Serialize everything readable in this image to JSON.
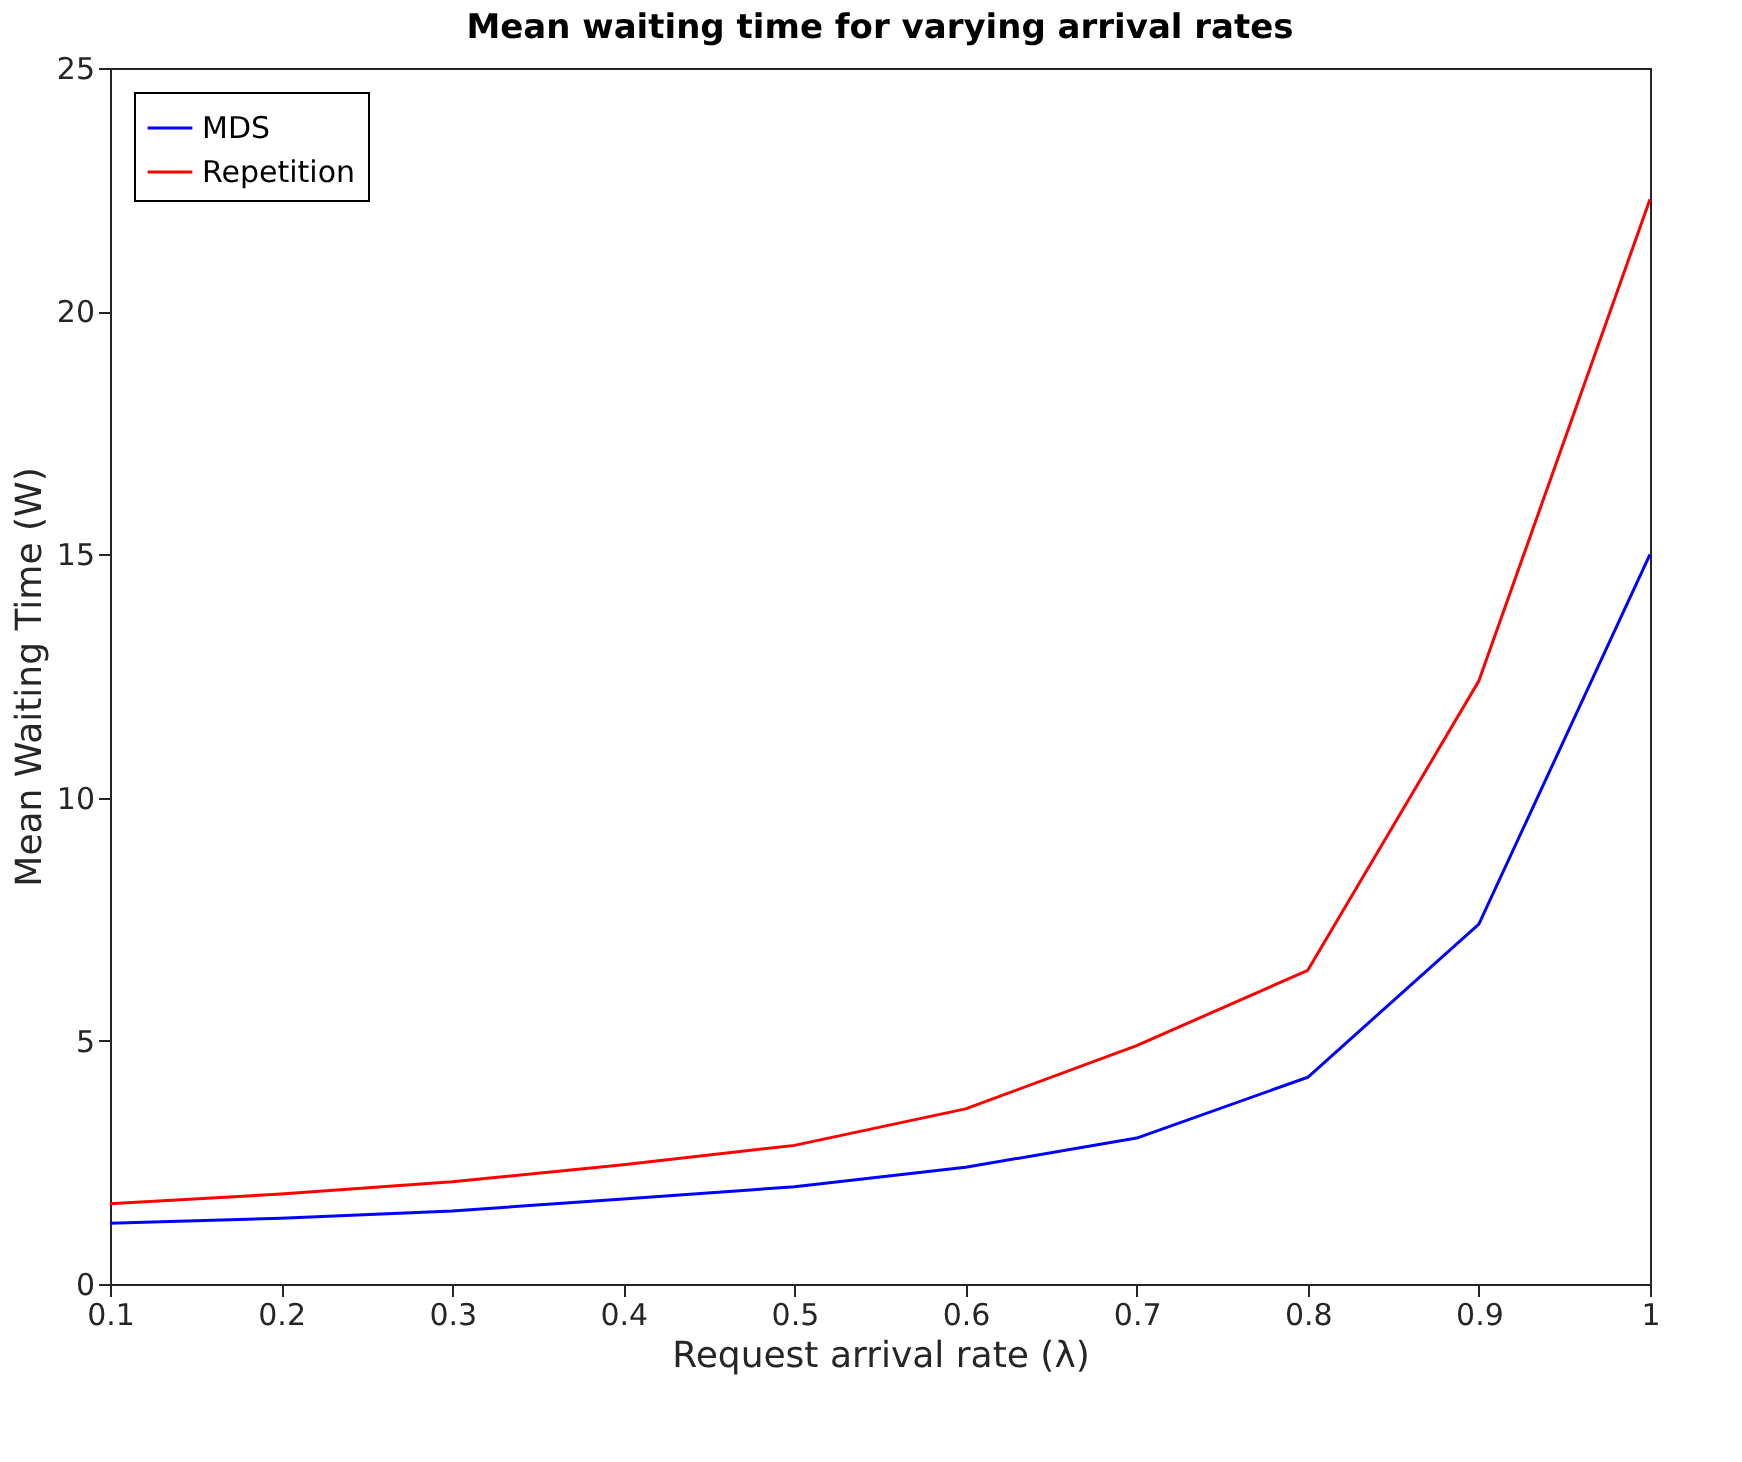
{
  "chart_data": {
    "type": "line",
    "title": "Mean waiting time for varying arrival rates",
    "xlabel": "Request arrival rate (λ)",
    "ylabel": "Mean Waiting Time (W)",
    "x": [
      0.1,
      0.2,
      0.3,
      0.4,
      0.5,
      0.6,
      0.7,
      0.8,
      0.9,
      1.0
    ],
    "series": [
      {
        "name": "MDS",
        "color": "#0000ff",
        "values": [
          1.25,
          1.35,
          1.5,
          1.75,
          2.0,
          2.4,
          3.0,
          4.25,
          7.4,
          15.0
        ]
      },
      {
        "name": "Repetition",
        "color": "#ff0000",
        "values": [
          1.65,
          1.85,
          2.1,
          2.45,
          2.85,
          3.6,
          4.9,
          6.45,
          12.4,
          22.3
        ]
      }
    ],
    "xlim": [
      0.1,
      1
    ],
    "ylim": [
      0,
      25
    ],
    "xticks": [
      0.1,
      0.2,
      0.3,
      0.4,
      0.5,
      0.6,
      0.7,
      0.8,
      0.9,
      1
    ],
    "yticks": [
      0,
      5,
      10,
      15,
      20,
      25
    ],
    "legend": "top left",
    "grid": false,
    "marker": "none",
    "line_style": "solid"
  }
}
